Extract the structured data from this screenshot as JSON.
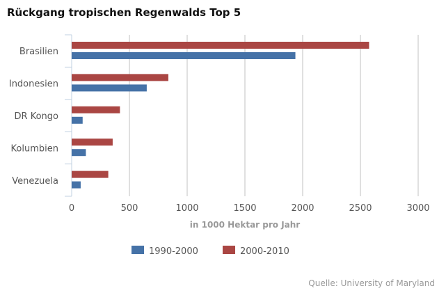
{
  "chart_data": {
    "type": "bar",
    "orientation": "horizontal",
    "title": "Rückgang tropischen Regenwalds Top 5",
    "categories": [
      "Brasilien",
      "Indonesien",
      "DR Kongo",
      "Kolumbien",
      "Venezuela"
    ],
    "series": [
      {
        "name": "2000-2010",
        "color": "#aa4643",
        "values": [
          2575,
          837,
          418,
          355,
          317
        ]
      },
      {
        "name": "1990-2000",
        "color": "#4572a7",
        "values": [
          1937,
          650,
          95,
          123,
          78
        ]
      }
    ],
    "legend_order": [
      "1990-2000",
      "2000-2010"
    ],
    "xlabel": "in 1000 Hektar pro Jahr",
    "xlim": [
      0,
      3000
    ],
    "xticks": [
      "0",
      "500",
      "1000",
      "1500",
      "2000",
      "2500",
      "3000"
    ],
    "grid": true,
    "legend_position": "bottom-center",
    "source": "Quelle: University of Maryland"
  }
}
